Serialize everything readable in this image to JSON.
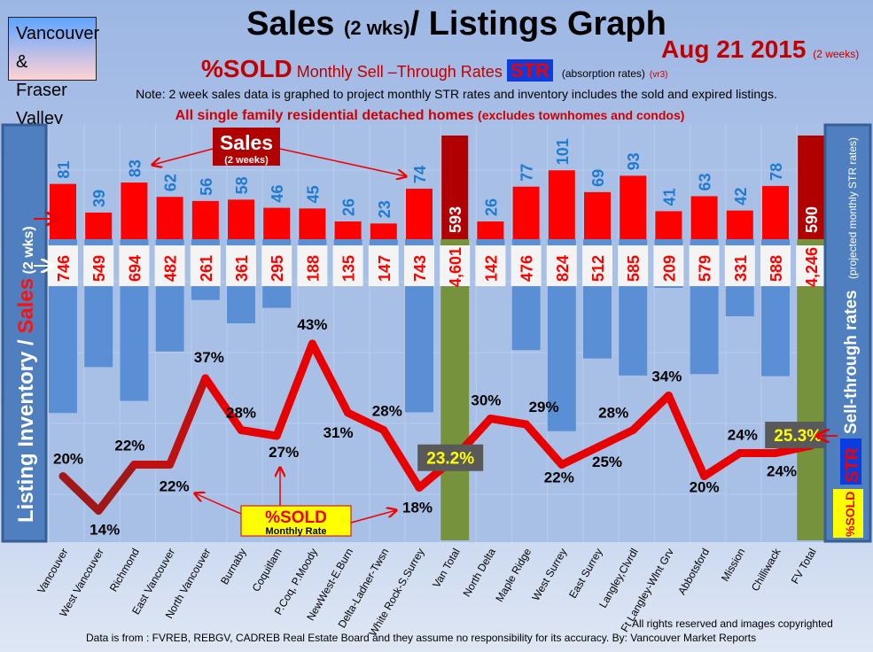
{
  "header": {
    "region": [
      "Vancouver &",
      "Fraser Valley"
    ],
    "title_main": "Sales ",
    "title_small": "(2 wks)",
    "title_rest": "/ Listings Graph",
    "date": "Aug 21 2015",
    "date_note": "(2 weeks)",
    "subtitle_sold": "%SOLD",
    "subtitle_text": "Monthly Sell –Through Rates",
    "subtitle_str": "STR",
    "subtitle_absorption": "(absorption rates)",
    "subtitle_version": "(vr3)",
    "note": "Note: 2 week sales data is graphed to project monthly STR rates and inventory includes the sold and expired listings.",
    "scope": "All single family residential detached homes",
    "scope_note": "(excludes townhomes and condos)"
  },
  "footer": {
    "rights": "All rights reserved and  images copyrighted",
    "source": "Data is from : FVREB, REBGV, CADREB Real Estate Board and they assume no responsibility for its accuracy. By: Vancouver Market Reports"
  },
  "colors": {
    "sales": "#ff0000",
    "inventory": "#5a8fd6",
    "total_sales": "#b00000",
    "total_inventory": "#76923c",
    "line": "#e80000",
    "sales_label": "#1f7ad0"
  },
  "chart_data": {
    "type": "bar",
    "title": "Sales (2 wks)/ Listings Graph",
    "left_axis_label": [
      "Listing Inventory / ",
      "Sales",
      " (2  wks)"
    ],
    "right_axis_label": [
      "Sell-through rates",
      "(projected monthly STR rates)"
    ],
    "right_badges": [
      "STR",
      "%SOLD"
    ],
    "annotations": {
      "sales_box": [
        "Sales",
        "(2 weeks)"
      ],
      "sold_box": [
        "%SOLD",
        "Monthly Rate"
      ]
    },
    "categories": [
      "Vancouver",
      "West Vancouver",
      "Richmond",
      "East Vancouver",
      "North Vancouver",
      "Burnaby",
      "Coquitlam",
      "P.Coq, P.Moody",
      "NewWest-E.Burn",
      "Delta-Ladner-Twsn",
      "White Rock-S.Surrey",
      "Van Total",
      "North Delta",
      "Maple Ridge",
      "West Surrey",
      "East Surrey",
      "Langley,Clvrdl",
      "Ft Langley-Wlnt Grv",
      "Abbotsford",
      "Mission",
      "Chilliwack",
      "FV Total"
    ],
    "totals": [
      11,
      21
    ],
    "series": [
      {
        "name": "Sales (2 weeks)",
        "values": [
          81,
          39,
          83,
          62,
          56,
          58,
          46,
          45,
          26,
          23,
          74,
          593,
          26,
          77,
          101,
          69,
          93,
          41,
          63,
          42,
          78,
          590
        ],
        "labels": [
          "81",
          "39",
          "83",
          "62",
          "56",
          "58",
          "46",
          "45",
          "26",
          "23",
          "74",
          "593",
          "26",
          "77",
          "101",
          "69",
          "93",
          "41",
          "63",
          "42",
          "78",
          "590"
        ]
      },
      {
        "name": "Listing Inventory",
        "values": [
          746,
          549,
          694,
          482,
          261,
          361,
          295,
          188,
          135,
          147,
          743,
          4601,
          142,
          476,
          824,
          512,
          585,
          209,
          579,
          331,
          588,
          4246
        ],
        "labels": [
          "746",
          "549",
          "694",
          "482",
          "261",
          "361",
          "295",
          "188",
          "135",
          "147",
          "743",
          "4,601",
          "142",
          "476",
          "824",
          "512",
          "585",
          "209",
          "579",
          "331",
          "588",
          "4,246"
        ]
      },
      {
        "name": "%SOLD Monthly Sell-Through Rate",
        "values": [
          20,
          14,
          22,
          22,
          37,
          28,
          27,
          43,
          31,
          28,
          18,
          23.2,
          30,
          29,
          22,
          25,
          28,
          34,
          20,
          24,
          24,
          25.3
        ],
        "labels": [
          "20%",
          "14%",
          "22%",
          "22%",
          "37%",
          "28%",
          "27%",
          "43%",
          "31%",
          "28%",
          "18%",
          "23.2%",
          "30%",
          "29%",
          "22%",
          "25%",
          "28%",
          "34%",
          "20%",
          "24%",
          "24%",
          "25.3%"
        ]
      }
    ]
  }
}
